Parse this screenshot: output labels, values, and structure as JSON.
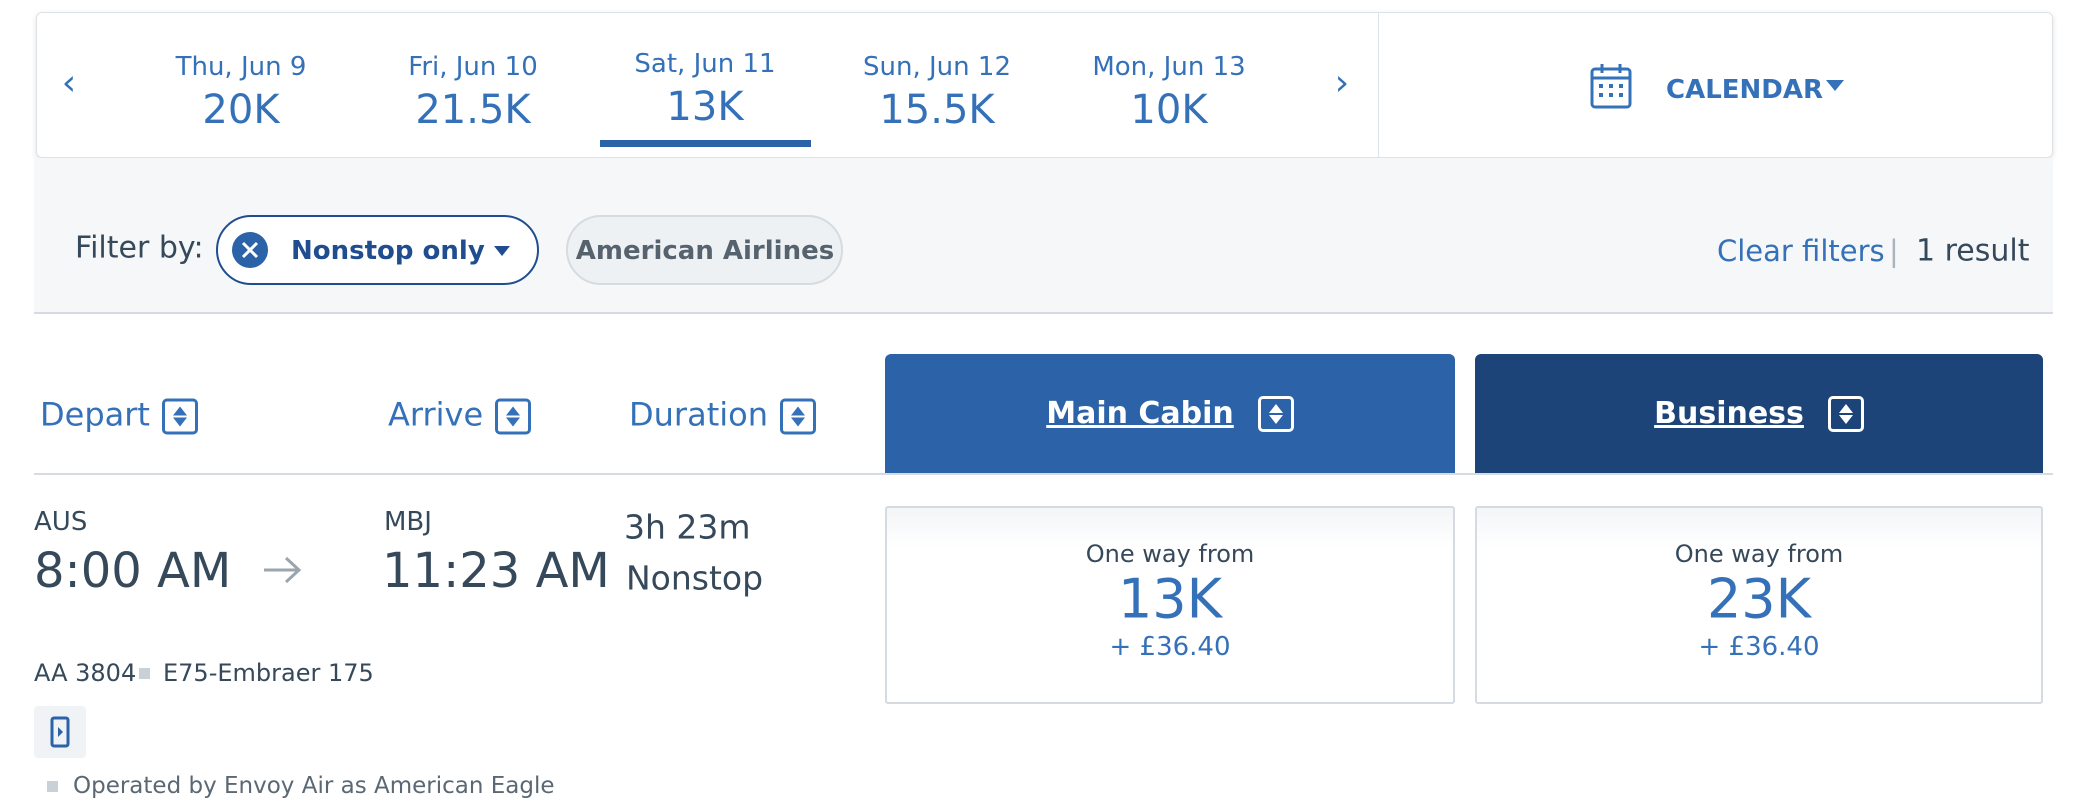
{
  "date_nav": {
    "tabs": [
      {
        "day": "Thu, Jun 9",
        "price": "20K"
      },
      {
        "day": "Fri, Jun 10",
        "price": "21.5K"
      },
      {
        "day": "Sat, Jun 11",
        "price": "13K"
      },
      {
        "day": "Sun, Jun 12",
        "price": "15.5K"
      },
      {
        "day": "Mon, Jun 13",
        "price": "10K"
      }
    ],
    "calendar": "CALENDAR"
  },
  "filters": {
    "label": "Filter by:",
    "chips": [
      "Nonstop only",
      "American Airlines"
    ],
    "clear": "Clear filters",
    "result_count": "1 result"
  },
  "columns": {
    "depart": "Depart",
    "arrive": "Arrive",
    "duration": "Duration",
    "cabins": [
      "Main Cabin",
      "Business"
    ]
  },
  "flight": {
    "origin": "AUS",
    "depart_time": "8:00 AM",
    "destination": "MBJ",
    "arrive_time": "11:23 AM",
    "duration": "3h 23m",
    "stops": "Nonstop",
    "flight_number": "AA 3804",
    "aircraft": "E75-Embraer 175",
    "operator": "Operated by Envoy Air as American Eagle",
    "fares": [
      {
        "label": "One way from",
        "miles": "13K",
        "tax": "+ £36.40"
      },
      {
        "label": "One way from",
        "miles": "23K",
        "tax": "+ £36.40"
      }
    ]
  }
}
